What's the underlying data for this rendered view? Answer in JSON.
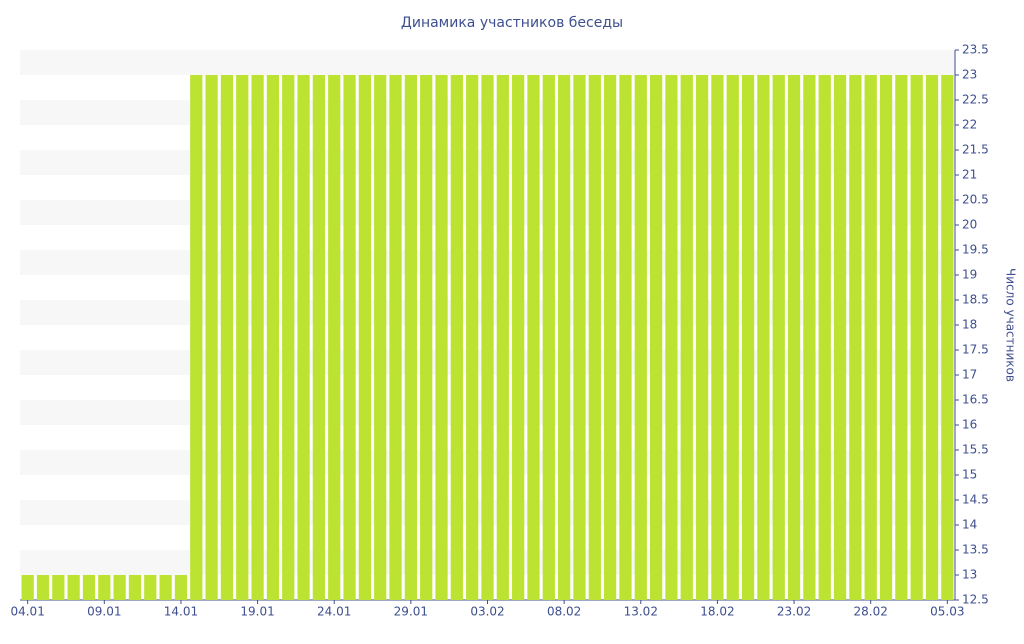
{
  "chart_data": {
    "type": "bar",
    "title": "Динамика участников беседы",
    "y_axis_label": "Число участников",
    "categories": [
      "04.01",
      null,
      null,
      null,
      null,
      "09.01",
      null,
      null,
      null,
      null,
      "14.01",
      null,
      null,
      null,
      null,
      "19.01",
      null,
      null,
      null,
      null,
      "24.01",
      null,
      null,
      null,
      null,
      "29.01",
      null,
      null,
      null,
      null,
      "03.02",
      null,
      null,
      null,
      null,
      "08.02",
      null,
      null,
      null,
      null,
      "13.02",
      null,
      null,
      null,
      null,
      "18.02",
      null,
      null,
      null,
      null,
      "23.02",
      null,
      null,
      null,
      null,
      "28.02",
      null,
      null,
      null,
      null,
      "05.03"
    ],
    "values": [
      13,
      13,
      13,
      13,
      13,
      13,
      13,
      13,
      13,
      13,
      13,
      23,
      23,
      23,
      23,
      23,
      23,
      23,
      23,
      23,
      23,
      23,
      23,
      23,
      23,
      23,
      23,
      23,
      23,
      23,
      23,
      23,
      23,
      23,
      23,
      23,
      23,
      23,
      23,
      23,
      23,
      23,
      23,
      23,
      23,
      23,
      23,
      23,
      23,
      23,
      23,
      23,
      23,
      23,
      23,
      23,
      23,
      23,
      23,
      23,
      23
    ],
    "color": "#bde332",
    "ylim": [
      12.5,
      23.5
    ],
    "yticks": [
      12.5,
      13,
      13.5,
      14,
      14.5,
      15,
      15.5,
      16,
      16.5,
      17,
      17.5,
      18,
      18.5,
      19,
      19.5,
      20,
      20.5,
      21,
      21.5,
      22,
      22.5,
      23,
      23.5
    ],
    "y_axis_side": "right",
    "grid": true
  }
}
